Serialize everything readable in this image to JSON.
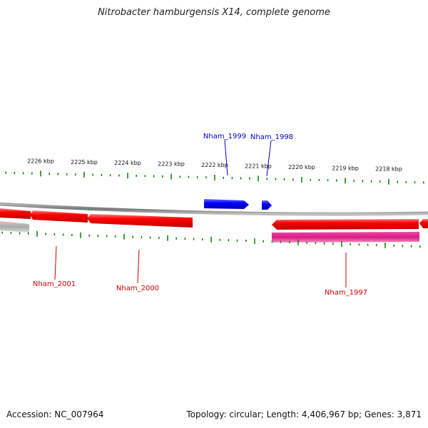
{
  "title": "Nitrobacter hamburgensis X14, complete genome",
  "footer": {
    "accession": "Accession: NC_007964",
    "summary": "Topology: circular; Length: 4,406,967 bp; Genes: 3,871"
  },
  "colors": {
    "forward_gene": "#0000ff",
    "reverse_gene": "#ff0000",
    "rna_gene": "#e01a8c",
    "other_feature": "#aaaaaa",
    "tick": "#008000",
    "backbone": "#888888",
    "forward_label": "#0000cc",
    "reverse_label": "#cc0000"
  },
  "scale_labels": [
    "2226 kbp",
    "2225 kbp",
    "2224 kbp",
    "2223 kbp",
    "2222 kbp",
    "2221 kbp",
    "2220 kbp",
    "2219 kbp",
    "2218 kbp"
  ],
  "genes": [
    {
      "label": "Nham_1999",
      "strand": "forward"
    },
    {
      "label": "Nham_1998",
      "strand": "forward"
    },
    {
      "label": "Nham_2001",
      "strand": "reverse"
    },
    {
      "label": "Nham_2000",
      "strand": "reverse"
    },
    {
      "label": "Nham_1997",
      "strand": "reverse"
    }
  ]
}
